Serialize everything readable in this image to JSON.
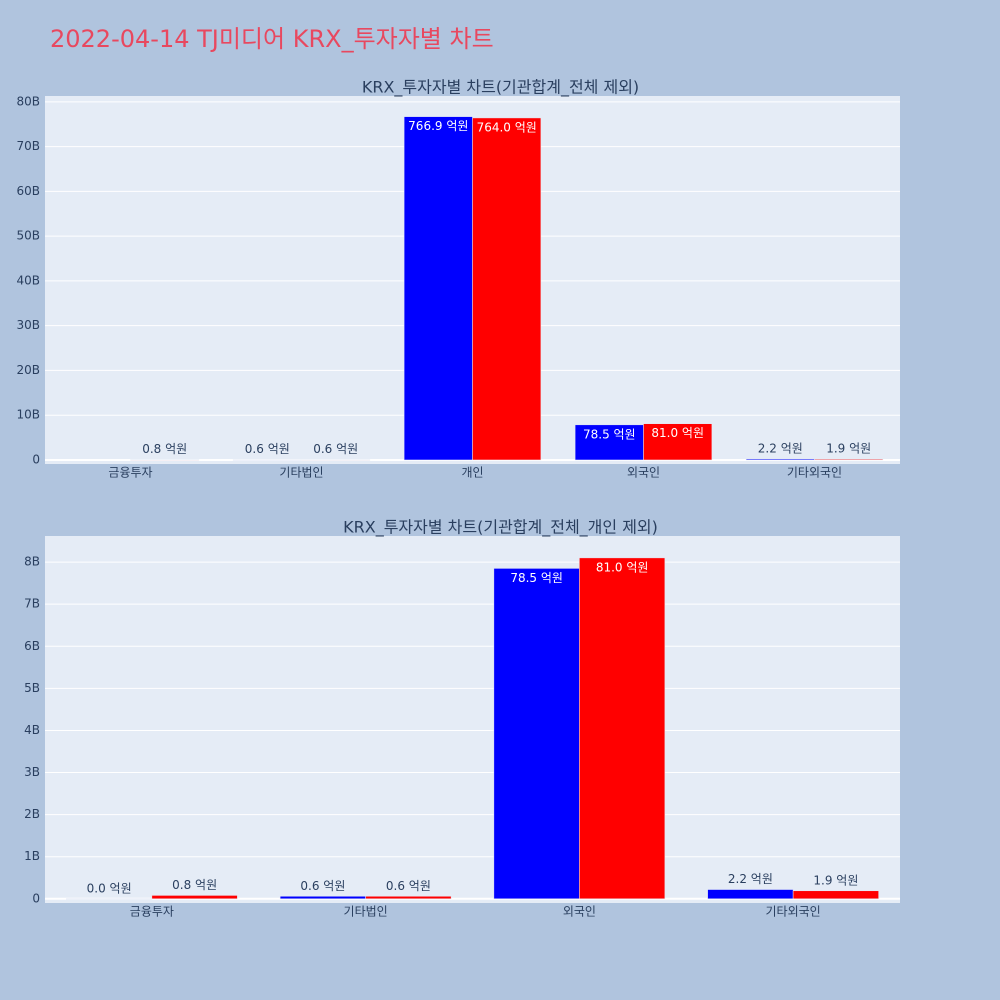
{
  "title": "2022-04-14 TJ미디어 KRX_투자자별 차트",
  "chart_data": [
    {
      "type": "bar",
      "title": "KRX_투자자별 차트(기관합계_전체 제외)",
      "categories": [
        "금융투자",
        "기타법인",
        "개인",
        "외국인",
        "기타외국인"
      ],
      "series": [
        {
          "color": "#0000ff",
          "values": [
            null,
            60000000,
            76690000000,
            7850000000,
            220000000
          ],
          "value_labels": [
            null,
            "0.6 억원",
            "766.9 억원",
            "78.5 억원",
            "2.2 억원"
          ]
        },
        {
          "color": "#ff0000",
          "values": [
            80000000,
            60000000,
            76400000000,
            8100000000,
            190000000
          ],
          "value_labels": [
            "0.8 억원",
            "0.6 억원",
            "764.0 억원",
            "81.0 억원",
            "1.9 억원"
          ]
        }
      ],
      "ylim": [
        -900000000,
        81300000000
      ],
      "yticks": [
        0,
        {
          "value": 10000000000,
          "label": "10B"
        },
        {
          "value": 20000000000,
          "label": "20B"
        },
        {
          "value": 30000000000,
          "label": "30B"
        },
        {
          "value": 40000000000,
          "label": "40B"
        },
        {
          "value": 50000000000,
          "label": "50B"
        },
        {
          "value": 60000000000,
          "label": "60B"
        },
        {
          "value": 70000000000,
          "label": "70B"
        },
        {
          "value": 80000000000,
          "label": "80B"
        }
      ],
      "grid": true
    },
    {
      "type": "bar",
      "title": "KRX_투자자별 차트(기관합계_전체_개인 제외)",
      "categories": [
        "금융투자",
        "기타법인",
        "외국인",
        "기타외국인"
      ],
      "series": [
        {
          "color": "#0000ff",
          "values": [
            0,
            60000000,
            7850000000,
            220000000
          ],
          "value_labels": [
            "0.0 억원",
            "0.6 억원",
            "78.5 억원",
            "2.2 억원"
          ]
        },
        {
          "color": "#ff0000",
          "values": [
            80000000,
            60000000,
            8100000000,
            190000000
          ],
          "value_labels": [
            "0.8 억원",
            "0.6 억원",
            "81.0 억원",
            "1.9 억원"
          ]
        }
      ],
      "ylim": [
        -100000000,
        8620000000
      ],
      "yticks": [
        0,
        {
          "value": 1000000000,
          "label": "1B"
        },
        {
          "value": 2000000000,
          "label": "2B"
        },
        {
          "value": 3000000000,
          "label": "3B"
        },
        {
          "value": 4000000000,
          "label": "4B"
        },
        {
          "value": 5000000000,
          "label": "5B"
        },
        {
          "value": 6000000000,
          "label": "6B"
        },
        {
          "value": 7000000000,
          "label": "7B"
        },
        {
          "value": 8000000000,
          "label": "8B"
        }
      ],
      "grid": true
    }
  ]
}
